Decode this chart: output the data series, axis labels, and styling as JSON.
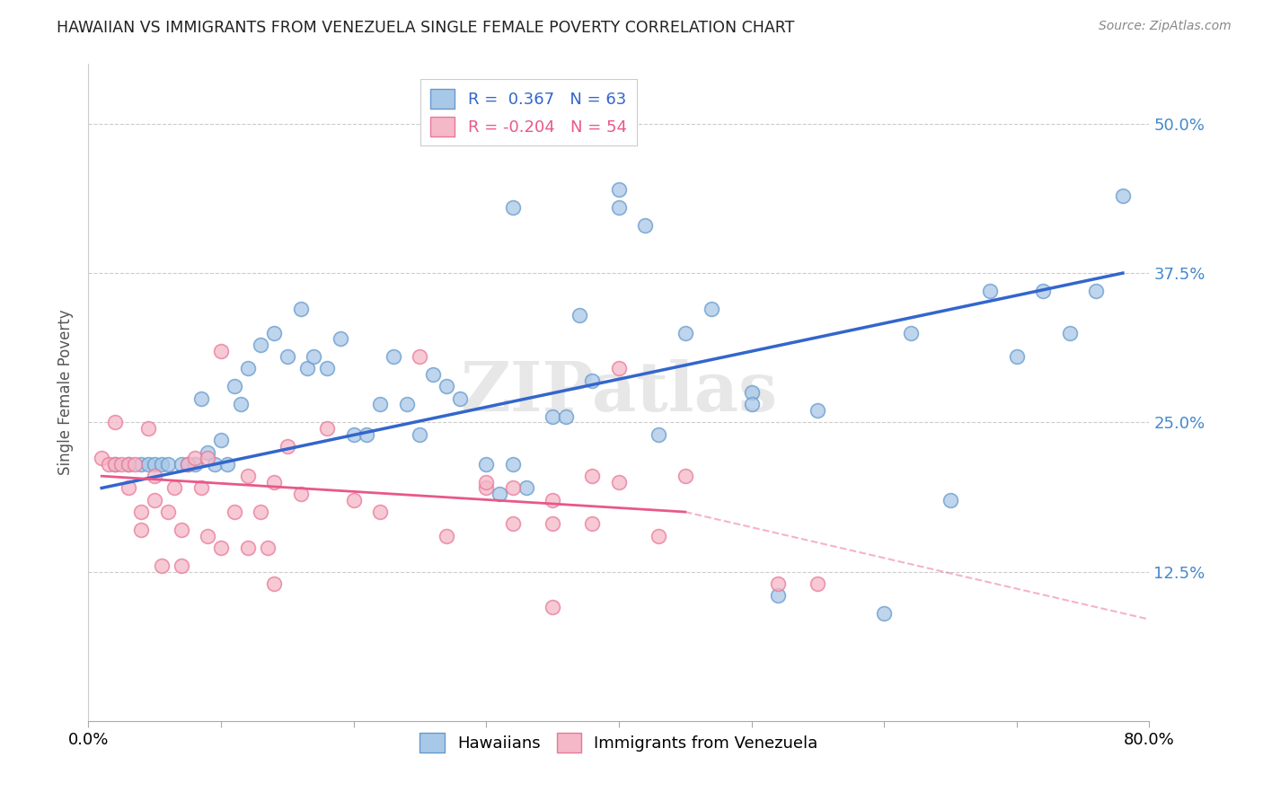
{
  "title": "HAWAIIAN VS IMMIGRANTS FROM VENEZUELA SINGLE FEMALE POVERTY CORRELATION CHART",
  "source": "Source: ZipAtlas.com",
  "ylabel": "Single Female Poverty",
  "xlim": [
    0.0,
    0.8
  ],
  "ylim": [
    0.0,
    0.55
  ],
  "yticks": [
    0.125,
    0.25,
    0.375,
    0.5
  ],
  "ytick_labels": [
    "12.5%",
    "25.0%",
    "37.5%",
    "50.0%"
  ],
  "xticks": [
    0.0,
    0.1,
    0.2,
    0.3,
    0.4,
    0.5,
    0.6,
    0.7,
    0.8
  ],
  "xtick_labels": [
    "0.0%",
    "",
    "",
    "",
    "",
    "",
    "",
    "",
    "80.0%"
  ],
  "blue_R": 0.367,
  "blue_N": 63,
  "pink_R": -0.204,
  "pink_N": 54,
  "blue_color": "#a8c8e8",
  "pink_color": "#f4b8c8",
  "blue_edge_color": "#6699cc",
  "pink_edge_color": "#e87898",
  "blue_line_color": "#3366cc",
  "pink_line_color": "#e8588a",
  "watermark": "ZIPatlas",
  "blue_line_start_x": 0.01,
  "blue_line_end_x": 0.78,
  "blue_line_start_y": 0.195,
  "blue_line_end_y": 0.375,
  "pink_line_start_x": 0.01,
  "pink_line_solid_end_x": 0.45,
  "pink_line_end_x": 0.8,
  "pink_line_start_y": 0.205,
  "pink_line_solid_end_y": 0.175,
  "pink_line_end_y": 0.085,
  "blue_scatter_x": [
    0.02,
    0.03,
    0.04,
    0.045,
    0.05,
    0.055,
    0.06,
    0.07,
    0.075,
    0.08,
    0.085,
    0.09,
    0.095,
    0.1,
    0.105,
    0.11,
    0.115,
    0.12,
    0.13,
    0.14,
    0.15,
    0.16,
    0.165,
    0.17,
    0.18,
    0.19,
    0.2,
    0.21,
    0.22,
    0.23,
    0.24,
    0.25,
    0.26,
    0.27,
    0.28,
    0.3,
    0.31,
    0.32,
    0.33,
    0.35,
    0.36,
    0.37,
    0.38,
    0.4,
    0.42,
    0.43,
    0.45,
    0.5,
    0.52,
    0.55,
    0.6,
    0.62,
    0.65,
    0.68,
    0.7,
    0.72,
    0.74,
    0.76,
    0.32,
    0.4,
    0.47,
    0.5,
    0.78
  ],
  "blue_scatter_y": [
    0.215,
    0.215,
    0.215,
    0.215,
    0.215,
    0.215,
    0.215,
    0.215,
    0.215,
    0.215,
    0.27,
    0.225,
    0.215,
    0.235,
    0.215,
    0.28,
    0.265,
    0.295,
    0.315,
    0.325,
    0.305,
    0.345,
    0.295,
    0.305,
    0.295,
    0.32,
    0.24,
    0.24,
    0.265,
    0.305,
    0.265,
    0.24,
    0.29,
    0.28,
    0.27,
    0.215,
    0.19,
    0.215,
    0.195,
    0.255,
    0.255,
    0.34,
    0.285,
    0.43,
    0.415,
    0.24,
    0.325,
    0.275,
    0.105,
    0.26,
    0.09,
    0.325,
    0.185,
    0.36,
    0.305,
    0.36,
    0.325,
    0.36,
    0.43,
    0.445,
    0.345,
    0.265,
    0.44
  ],
  "pink_scatter_x": [
    0.01,
    0.015,
    0.02,
    0.02,
    0.025,
    0.03,
    0.03,
    0.035,
    0.04,
    0.04,
    0.045,
    0.05,
    0.05,
    0.055,
    0.06,
    0.065,
    0.07,
    0.07,
    0.075,
    0.08,
    0.085,
    0.09,
    0.09,
    0.1,
    0.11,
    0.12,
    0.13,
    0.135,
    0.14,
    0.15,
    0.16,
    0.18,
    0.2,
    0.22,
    0.25,
    0.27,
    0.3,
    0.32,
    0.35,
    0.38,
    0.4,
    0.43,
    0.45,
    0.52,
    0.55,
    0.35,
    0.38,
    0.1,
    0.12,
    0.14,
    0.3,
    0.32,
    0.35,
    0.4
  ],
  "pink_scatter_y": [
    0.22,
    0.215,
    0.25,
    0.215,
    0.215,
    0.195,
    0.215,
    0.215,
    0.16,
    0.175,
    0.245,
    0.205,
    0.185,
    0.13,
    0.175,
    0.195,
    0.13,
    0.16,
    0.215,
    0.22,
    0.195,
    0.22,
    0.155,
    0.31,
    0.175,
    0.205,
    0.175,
    0.145,
    0.2,
    0.23,
    0.19,
    0.245,
    0.185,
    0.175,
    0.305,
    0.155,
    0.195,
    0.195,
    0.185,
    0.165,
    0.295,
    0.155,
    0.205,
    0.115,
    0.115,
    0.165,
    0.205,
    0.145,
    0.145,
    0.115,
    0.2,
    0.165,
    0.095,
    0.2
  ]
}
